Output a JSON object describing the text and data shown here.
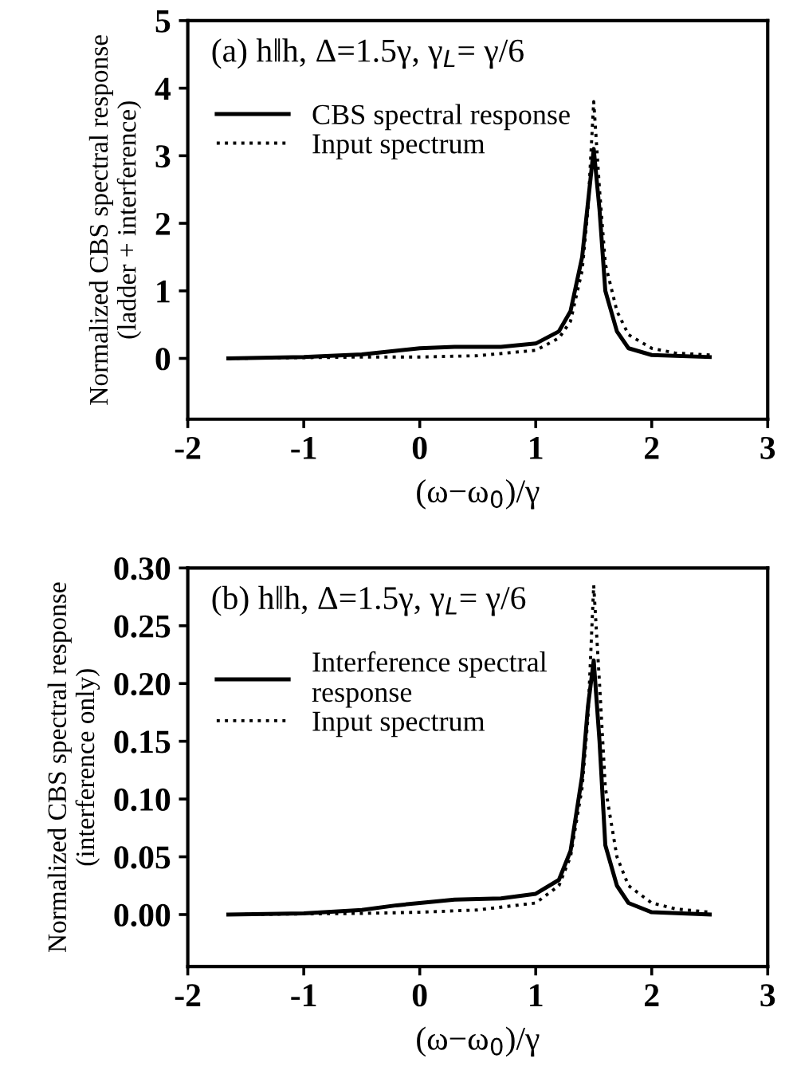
{
  "chart_data": [
    {
      "type": "line",
      "xlabel": "(ω−ω$_{0}$)/γ",
      "ylabel": "Normalized CBS spectral response\n(ladder + interference)",
      "annotations": [
        "(a) h‖h, Δ=1.5γ, γ$_{L}$= γ/6"
      ],
      "xlim": [
        -2,
        3
      ],
      "xticks": [
        -2,
        -1,
        0,
        1,
        2,
        3
      ],
      "ylim": [
        -0.9,
        5
      ],
      "yticks": [
        0,
        1,
        2,
        3,
        4,
        5
      ],
      "legend": "top left",
      "grid": false,
      "series": [
        {
          "name": "CBS spectral response",
          "color": "#000000",
          "line_style": "solid",
          "x": [
            -1.65,
            -1,
            -0.5,
            0,
            0.3,
            0.7,
            1.0,
            1.2,
            1.3,
            1.4,
            1.45,
            1.5,
            1.55,
            1.6,
            1.7,
            1.8,
            2.0,
            2.5
          ],
          "values": [
            0,
            0.02,
            0.06,
            0.15,
            0.17,
            0.17,
            0.22,
            0.4,
            0.7,
            1.5,
            2.3,
            3.1,
            2.2,
            1.0,
            0.4,
            0.15,
            0.05,
            0.02
          ]
        },
        {
          "name": "Input spectrum",
          "color": "#000000",
          "line_style": "dotted",
          "x": [
            -1.65,
            -0.5,
            0,
            0.5,
            1.0,
            1.2,
            1.3,
            1.4,
            1.45,
            1.5,
            1.55,
            1.6,
            1.7,
            1.8,
            2.0,
            2.2,
            2.5
          ],
          "values": [
            0,
            0.02,
            0.02,
            0.04,
            0.12,
            0.3,
            0.55,
            1.3,
            2.2,
            3.8,
            2.5,
            1.4,
            0.7,
            0.35,
            0.15,
            0.08,
            0.05
          ]
        }
      ]
    },
    {
      "type": "line",
      "xlabel": "(ω−ω$_{0}$)/γ",
      "ylabel": "Normalized CBS spectral response\n(interference only)",
      "annotations": [
        "(b) h‖h, Δ=1.5γ, γ$_{L}$= γ/6"
      ],
      "xlim": [
        -2,
        3
      ],
      "xticks": [
        -2,
        -1,
        0,
        1,
        2,
        3
      ],
      "ylim": [
        -0.045,
        0.3
      ],
      "yticks": [
        {
          "value": 0,
          "label": "0.00"
        },
        {
          "value": 0.05,
          "label": "0.05"
        },
        {
          "value": 0.1,
          "label": "0.10"
        },
        {
          "value": 0.15,
          "label": "0.15"
        },
        {
          "value": 0.2,
          "label": "0.20"
        },
        {
          "value": 0.25,
          "label": "0.25"
        },
        {
          "value": 0.3,
          "label": "0.30"
        }
      ],
      "legend": "top left",
      "grid": false,
      "series": [
        {
          "name": "Interference spectral\nresponse",
          "color": "#000000",
          "line_style": "solid",
          "x": [
            -1.65,
            -1,
            -0.5,
            -0.2,
            0,
            0.3,
            0.7,
            1.0,
            1.2,
            1.3,
            1.4,
            1.45,
            1.5,
            1.55,
            1.6,
            1.7,
            1.8,
            2.0,
            2.5
          ],
          "values": [
            0,
            0.001,
            0.004,
            0.008,
            0.01,
            0.013,
            0.014,
            0.018,
            0.03,
            0.055,
            0.12,
            0.18,
            0.22,
            0.15,
            0.06,
            0.025,
            0.01,
            0.002,
            0
          ]
        },
        {
          "name": "Input spectrum",
          "color": "#000000",
          "line_style": "dotted",
          "x": [
            -1.65,
            -0.5,
            0,
            0.5,
            1.0,
            1.2,
            1.3,
            1.4,
            1.45,
            1.5,
            1.55,
            1.6,
            1.7,
            1.8,
            2.0,
            2.2,
            2.5
          ],
          "values": [
            0,
            0.001,
            0.002,
            0.004,
            0.01,
            0.025,
            0.05,
            0.11,
            0.17,
            0.285,
            0.2,
            0.11,
            0.05,
            0.025,
            0.01,
            0.005,
            0.002
          ]
        }
      ]
    }
  ]
}
